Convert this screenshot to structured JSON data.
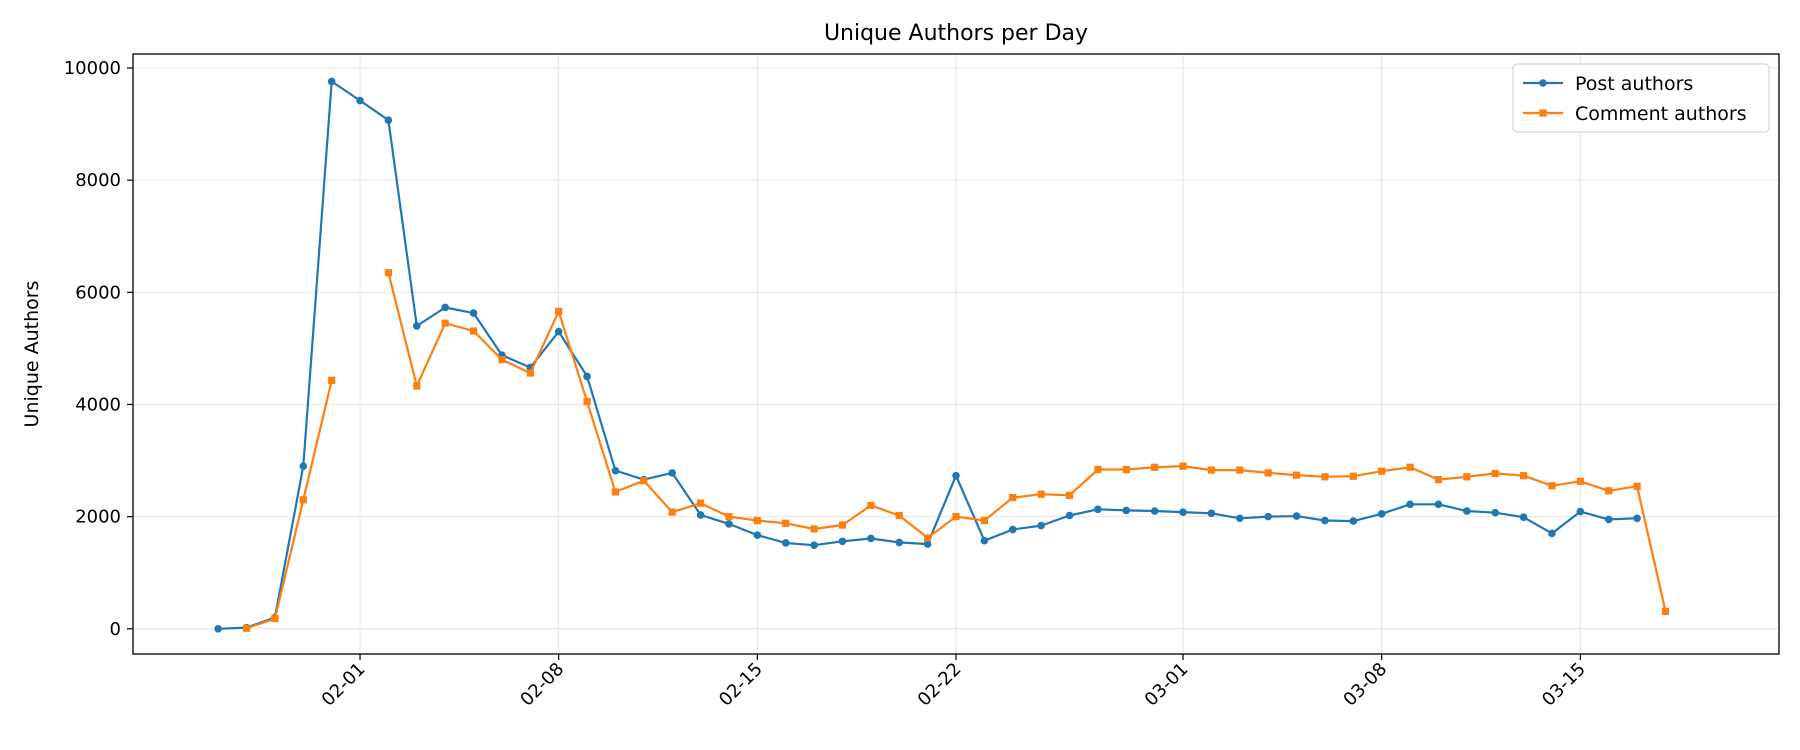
{
  "chart_data": {
    "type": "line",
    "title": "Unique Authors per Day",
    "xlabel": "",
    "ylabel": "Unique Authors",
    "x_type": "date",
    "year": 2000,
    "x_tick_labels": [
      "02-01",
      "02-08",
      "02-15",
      "02-22",
      "03-01",
      "03-08",
      "03-15"
    ],
    "y_ticks": [
      0,
      2000,
      4000,
      6000,
      8000,
      10000
    ],
    "xlim": [
      "01-24",
      "03-22"
    ],
    "ylim": [
      -450,
      10250
    ],
    "grid": true,
    "legend_position": "top-right",
    "series": [
      {
        "name": "Post authors",
        "color": "#1f77b4",
        "marker": "circle",
        "x": [
          "01-27",
          "01-28",
          "01-29",
          "01-30",
          "01-31",
          "02-01",
          "02-02",
          "02-03",
          "02-04",
          "02-05",
          "02-06",
          "02-07",
          "02-08",
          "02-09",
          "02-10",
          "02-11",
          "02-12",
          "02-13",
          "02-14",
          "02-15",
          "02-16",
          "02-17",
          "02-18",
          "02-19",
          "02-20",
          "02-21",
          "02-22",
          "02-23",
          "02-24",
          "02-25",
          "02-26",
          "02-27",
          "02-28",
          "02-29",
          "03-01",
          "03-02",
          "03-03",
          "03-04",
          "03-05",
          "03-06",
          "03-07",
          "03-08",
          "03-09",
          "03-10",
          "03-11",
          "03-12",
          "03-13",
          "03-14",
          "03-15",
          "03-16",
          "03-17",
          "03-18"
        ],
        "y": [
          0,
          20,
          200,
          2900,
          9760,
          9420,
          9070,
          5400,
          5730,
          5630,
          4880,
          4660,
          5300,
          4500,
          2820,
          2660,
          2780,
          2030,
          1870,
          1670,
          1530,
          1490,
          1560,
          1610,
          1540,
          1510,
          2730,
          1570,
          1770,
          1840,
          2020,
          2130,
          2110,
          2100,
          2080,
          2060,
          1970,
          2000,
          2010,
          1930,
          1920,
          2050,
          2220,
          2220,
          2100,
          2070,
          1990,
          1700,
          2090,
          1950,
          1970,
          null
        ],
        "values": [
          0,
          20,
          200,
          2900,
          9760,
          9420,
          9070,
          5400,
          5730,
          5630,
          4880,
          4660,
          5300,
          4500,
          2820,
          2660,
          2780,
          2030,
          1870,
          1670,
          1530,
          1490,
          1560,
          1610,
          1540,
          1510,
          2730,
          1570,
          1770,
          1840,
          2020,
          2130,
          2110,
          2100,
          2080,
          2060,
          1970,
          2000,
          2010,
          1930,
          1920,
          2050,
          2220,
          2220,
          2100,
          2070,
          1990,
          1700,
          2090,
          1950,
          1970,
          null
        ]
      },
      {
        "name": "Comment authors",
        "color": "#ff7f0e",
        "marker": "square",
        "x": [
          "01-27",
          "01-28",
          "01-29",
          "01-30",
          "01-31",
          "02-01",
          "02-02",
          "02-03",
          "02-04",
          "02-05",
          "02-06",
          "02-07",
          "02-08",
          "02-09",
          "02-10",
          "02-11",
          "02-12",
          "02-13",
          "02-14",
          "02-15",
          "02-16",
          "02-17",
          "02-18",
          "02-19",
          "02-20",
          "02-21",
          "02-22",
          "02-23",
          "02-24",
          "02-25",
          "02-26",
          "02-27",
          "02-28",
          "02-29",
          "03-01",
          "03-02",
          "03-03",
          "03-04",
          "03-05",
          "03-06",
          "03-07",
          "03-08",
          "03-09",
          "03-10",
          "03-11",
          "03-12",
          "03-13",
          "03-14",
          "03-15",
          "03-16",
          "03-17",
          "03-18"
        ],
        "y": [
          null,
          10,
          180,
          2300,
          4430,
          null,
          6350,
          4330,
          5450,
          5310,
          4800,
          4560,
          5660,
          4050,
          2440,
          2640,
          2080,
          2240,
          2000,
          1930,
          1880,
          1780,
          1850,
          2200,
          2020,
          1620,
          2000,
          1930,
          2340,
          2400,
          2380,
          2840,
          2840,
          2880,
          2900,
          2830,
          2830,
          2780,
          2740,
          2710,
          2720,
          2810,
          2880,
          2660,
          2710,
          2770,
          2730,
          2550,
          2630,
          2460,
          2540,
          310
        ],
        "values": [
          null,
          10,
          180,
          2300,
          4430,
          null,
          6350,
          4330,
          5450,
          5310,
          4800,
          4560,
          5660,
          4050,
          2440,
          2640,
          2080,
          2240,
          2000,
          1930,
          1880,
          1780,
          1850,
          2200,
          2020,
          1620,
          2000,
          1930,
          2340,
          2400,
          2380,
          2840,
          2840,
          2880,
          2900,
          2830,
          2830,
          2780,
          2740,
          2710,
          2720,
          2810,
          2880,
          2660,
          2710,
          2770,
          2730,
          2550,
          2630,
          2460,
          2540,
          310
        ]
      }
    ]
  }
}
